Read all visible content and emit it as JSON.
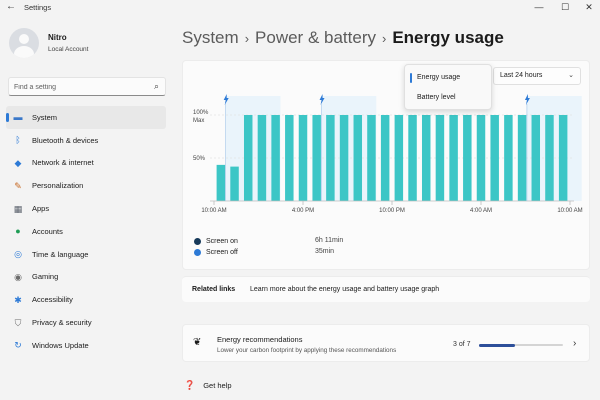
{
  "window": {
    "title": "Settings",
    "back_glyph": "←",
    "min_glyph": "—",
    "max_glyph": "☐",
    "close_glyph": "✕"
  },
  "user": {
    "name": "Nitro",
    "account_type": "Local Account"
  },
  "search": {
    "placeholder": "Find a setting",
    "value": ""
  },
  "nav": [
    {
      "label": "System",
      "icon": "display-icon",
      "glyph": "▬",
      "color": "#3a78c9",
      "selected": true
    },
    {
      "label": "Bluetooth & devices",
      "icon": "bluetooth-icon",
      "glyph": "ᛒ",
      "color": "#2d7ad6"
    },
    {
      "label": "Network & internet",
      "icon": "wifi-icon",
      "glyph": "◆",
      "color": "#2d7ad6"
    },
    {
      "label": "Personalization",
      "icon": "brush-icon",
      "glyph": "✎",
      "color": "#c6661f"
    },
    {
      "label": "Apps",
      "icon": "apps-icon",
      "glyph": "▦",
      "color": "#59606b"
    },
    {
      "label": "Accounts",
      "icon": "accounts-icon",
      "glyph": "●",
      "color": "#1f9d55"
    },
    {
      "label": "Time & language",
      "icon": "globe-clock-icon",
      "glyph": "◎",
      "color": "#2d7ad6"
    },
    {
      "label": "Gaming",
      "icon": "gamepad-icon",
      "glyph": "◉",
      "color": "#6b6b6b"
    },
    {
      "label": "Accessibility",
      "icon": "accessibility-icon",
      "glyph": "✱",
      "color": "#2d7ad6"
    },
    {
      "label": "Privacy & security",
      "icon": "shield-icon",
      "glyph": "⛉",
      "color": "#6b6b6b"
    },
    {
      "label": "Windows Update",
      "icon": "update-icon",
      "glyph": "↻",
      "color": "#2d7ad6"
    }
  ],
  "breadcrumb": {
    "parts": [
      "System",
      "Power & battery"
    ],
    "current": "Energy usage",
    "sep": "›"
  },
  "chart_controls": {
    "view_options": [
      "Energy usage",
      "Battery level"
    ],
    "selected_view": "Energy usage",
    "time_range": "Last 24 hours"
  },
  "chart_data": {
    "type": "bar",
    "y_ticks": [
      {
        "label": "100%",
        "sub": "Max",
        "value": 100
      },
      {
        "label": "50%",
        "value": 50
      }
    ],
    "ylim": [
      0,
      100
    ],
    "x_ticks": [
      {
        "label": "10:00 AM",
        "pos": 0
      },
      {
        "label": "4:00 PM",
        "pos": 6
      },
      {
        "label": "10:00 PM",
        "pos": 12
      },
      {
        "label": "4:00 AM",
        "pos": 18
      },
      {
        "label": "10:00 AM",
        "pos": 24
      }
    ],
    "values": [
      42,
      40,
      100,
      100,
      100,
      100,
      100,
      100,
      100,
      100,
      100,
      100,
      100,
      100,
      100,
      100,
      100,
      100,
      100,
      100,
      100,
      100,
      100,
      100,
      100,
      100
    ],
    "charge_markers": [
      1,
      8,
      23
    ],
    "bar_color": "#3cc6c6",
    "charge_color": "#2d7ad6"
  },
  "legend": [
    {
      "label": "Screen on",
      "value": "6h 11min",
      "color": "#173a5a"
    },
    {
      "label": "Screen off",
      "value": "35min",
      "color": "#2d7ad6"
    }
  ],
  "related": {
    "label": "Related links",
    "link": "Learn more about the energy usage and battery usage graph"
  },
  "recommendations": {
    "title": "Energy recommendations",
    "subtitle": "Lower your carbon footprint by applying these recommendations",
    "count": "3 of 7",
    "progress": 0.43
  },
  "help": {
    "label": "Get help"
  }
}
